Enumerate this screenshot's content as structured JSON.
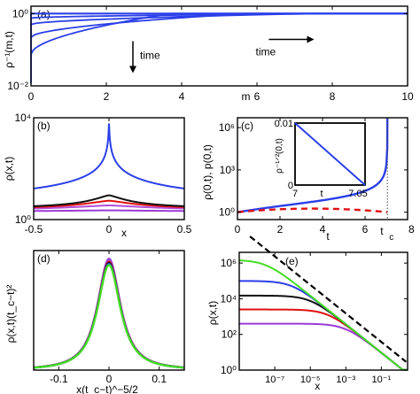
{
  "chart_data": [
    {
      "panel": "(a)",
      "type": "line",
      "xlabel": "m",
      "ylabel": "ρ⁻¹(m,t)",
      "xlim": [
        0,
        10
      ],
      "ylim": [
        0.01,
        1.6
      ],
      "yscale": "log",
      "xticks": [
        0,
        2,
        4,
        6,
        8,
        10
      ],
      "yticks": [
        {
          "v": 0.01,
          "label": "10⁻²"
        },
        {
          "v": 1,
          "label": "10⁰"
        }
      ],
      "annotations": [
        {
          "text": "time",
          "arrow": "right",
          "at": [
            6.2,
            0.11
          ]
        },
        {
          "text": "time",
          "arrow": "down",
          "at": [
            2.8,
            0.05
          ]
        }
      ],
      "series": [
        {
          "color": "#2b3fe8",
          "shape": "flat",
          "level": 1.0
        },
        {
          "color": "#2b3fe8",
          "shape": "step",
          "start": 0.75,
          "front": 8.1
        },
        {
          "color": "#2b3fe8",
          "shape": "step",
          "start": 0.5,
          "front": 7.4
        },
        {
          "color": "#2b3fe8",
          "shape": "step",
          "start": 0.22,
          "front": 5.7
        },
        {
          "color": "#2b3fe8",
          "shape": "step",
          "start": 0.075,
          "front": 3.7
        },
        {
          "color": "#2b3fe8",
          "shape": "step",
          "start": 0.012,
          "front": 0.0
        }
      ]
    },
    {
      "panel": "(b)",
      "type": "line",
      "xlabel": "x",
      "ylabel": "ρ(x,t)",
      "xlim": [
        -0.5,
        0.5
      ],
      "ylim": [
        1,
        10000
      ],
      "yscale": "log",
      "xticks": [
        {
          "v": -0.5,
          "label": "-0.5"
        },
        {
          "v": 0,
          "label": "0"
        },
        {
          "v": 0.5,
          "label": "0.5"
        }
      ],
      "yticks": [
        {
          "v": 1,
          "label": "10⁰"
        },
        {
          "v": 10000,
          "label": "10⁴"
        }
      ],
      "series": [
        {
          "color": "#9b3ad6",
          "edge": 2.0,
          "peak": 2.3,
          "width": 0.6
        },
        {
          "color": "#b44ed9",
          "edge": 2.2,
          "peak": 3.6,
          "width": 0.35
        },
        {
          "color": "#e01010",
          "edge": 2.4,
          "peak": 5.5,
          "width": 0.2
        },
        {
          "color": "#111111",
          "edge": 2.6,
          "peak": 9.0,
          "width": 0.12
        },
        {
          "color": "#2b3fe8",
          "edge": 2.8,
          "peak": 6000,
          "width": 0.002
        }
      ]
    },
    {
      "panel": "(c)",
      "type": "line",
      "xlabel": "t",
      "ylabel": "ρ(0,t), p(0,t)",
      "xlim": [
        0,
        8
      ],
      "ylim": [
        0.3,
        5000000
      ],
      "yscale": "log",
      "xticks": [
        0,
        2,
        4,
        6,
        8
      ],
      "yticks": [
        {
          "v": 1,
          "label": "10⁰"
        },
        {
          "v": 1000,
          "label": "10³"
        },
        {
          "v": 1000000,
          "label": "10⁶"
        }
      ],
      "tc_label": "t",
      "tc_sub": "c",
      "tc": 7.05,
      "series": [
        {
          "name": "ρ(0,t)",
          "color": "#2b3fe8",
          "style": "solid"
        },
        {
          "name": "p(0,t)",
          "color": "#e01010",
          "style": "dashed"
        }
      ],
      "inset": {
        "xlabel": "t",
        "ylabel": "ρ⁻¹ᐟ²(0,t)",
        "xlim": [
          7,
          7.05
        ],
        "ylim": [
          0,
          0.01
        ],
        "xticks": [
          {
            "v": 7,
            "label": "7"
          },
          {
            "v": 7.05,
            "label": "7.05"
          }
        ],
        "yticks": [
          {
            "v": 0,
            "label": "0"
          },
          {
            "v": 0.01,
            "label": "0.01"
          }
        ],
        "line": {
          "x": [
            7,
            7.05
          ],
          "y": [
            0.01,
            0
          ],
          "color": "#2b3fe8"
        }
      }
    },
    {
      "panel": "(d)",
      "type": "line",
      "xlabel": "x(t_c−t)^−5/2",
      "ylabel": "ρ(x,t)(t_c−t)²",
      "xlim": [
        -0.15,
        0.15
      ],
      "ylim": [
        0,
        58
      ],
      "xticks": [
        {
          "v": -0.1,
          "label": "-0.1"
        },
        {
          "v": 0,
          "label": "0"
        },
        {
          "v": 0.1,
          "label": "0.1"
        }
      ],
      "series": [
        {
          "color": "#9b3ad6",
          "peak": 54,
          "width": 0.03
        },
        {
          "color": "#b44ed9",
          "peak": 53,
          "width": 0.03
        },
        {
          "color": "#e01010",
          "peak": 52.5,
          "width": 0.03
        },
        {
          "color": "#111111",
          "peak": 52,
          "width": 0.03
        },
        {
          "color": "#2b3fe8",
          "peak": 51.5,
          "width": 0.03
        },
        {
          "color": "#44dd22",
          "peak": 51,
          "width": 0.03
        }
      ]
    },
    {
      "panel": "(e)",
      "type": "line",
      "xlabel": "x",
      "ylabel": "ρ(x,t)",
      "xscale": "log",
      "yscale": "log",
      "xlim": [
        1e-09,
        3
      ],
      "ylim": [
        1,
        4000000
      ],
      "xticks": [
        {
          "v": 1e-07,
          "label": "10⁻⁷"
        },
        {
          "v": 1e-05,
          "label": "10⁻⁵"
        },
        {
          "v": 0.001,
          "label": "10⁻³"
        },
        {
          "v": 0.1,
          "label": "10⁻¹"
        }
      ],
      "yticks": [
        {
          "v": 1,
          "label": "10⁰"
        },
        {
          "v": 100,
          "label": "10²"
        },
        {
          "v": 10000,
          "label": "10⁴"
        },
        {
          "v": 1000000,
          "label": "10⁶"
        }
      ],
      "reference_slope": -0.8,
      "series": [
        {
          "color": "#9b3ad6",
          "plateau": 400
        },
        {
          "color": "#e01010",
          "plateau": 2500
        },
        {
          "color": "#111111",
          "plateau": 15000
        },
        {
          "color": "#2b3fe8",
          "plateau": 100000
        },
        {
          "color": "#44dd22",
          "plateau": 1500000
        },
        {
          "color": "#000000",
          "style": "dashed",
          "reference": true
        }
      ]
    }
  ]
}
